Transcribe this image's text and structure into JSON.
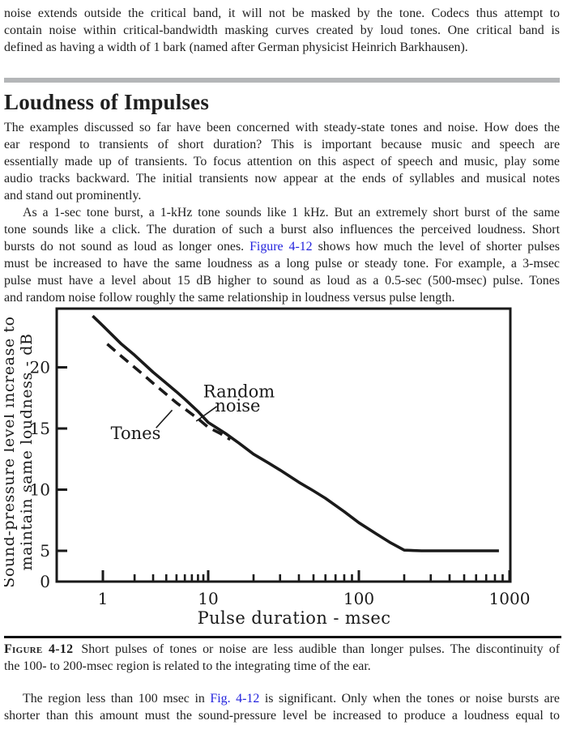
{
  "colors": {
    "ink": "#1f1f1f",
    "link": "#2222dd",
    "divider": "#b4b6b8",
    "chart_line": "#1a1a1a"
  },
  "intro": {
    "lines": [
      [
        {
          "t": "noise extends outside the critical band, it will not be masked by the tone. Codecs thus attempt to"
        }
      ],
      [
        {
          "t": "contain noise within critical-bandwidth masking curves created by loud tones. One critical band is"
        }
      ],
      [
        {
          "t": "defined as having a width of 1 bark (named after German physicist Heinrich Barkhausen)."
        }
      ]
    ]
  },
  "heading": "Loudness of Impulses",
  "paragraph1": {
    "lines": [
      [
        {
          "t": "The examples discussed so far have been concerned with steady-state tones and noise. How does the"
        }
      ],
      [
        {
          "t": "ear respond to transients of short duration? This is important because music and speech are"
        }
      ],
      [
        {
          "t": "essentially made up of transients. To focus attention on this aspect of speech and music, play some"
        }
      ],
      [
        {
          "t": "audio tracks backward. The initial transients now appear at the ends of syllables and musical notes"
        }
      ],
      [
        {
          "t": "and stand out prominently."
        }
      ]
    ]
  },
  "paragraph2": {
    "lines": [
      [
        {
          "t": "As a 1-sec tone burst, a 1-kHz tone sounds like 1 kHz. But an extremely short burst of the same"
        }
      ],
      [
        {
          "t": "tone sounds like a click. The duration of such a burst also influences the perceived loudness. Short"
        }
      ],
      [
        {
          "t": "bursts do not sound as loud as longer ones. "
        },
        {
          "t": "Figure 4-12",
          "kind": "link"
        },
        {
          "t": " shows how much the level of shorter pulses"
        }
      ],
      [
        {
          "t": "must be increased to have the same loudness as a long pulse or steady tone. For example, a 3-msec"
        }
      ],
      [
        {
          "t": "pulse must have a level about 15 dB higher to sound as loud as a 0.5-sec (500-msec) pulse. Tones"
        }
      ],
      [
        {
          "t": "and random noise follow roughly the same relationship in loudness versus pulse length."
        }
      ]
    ]
  },
  "caption": {
    "lines": [
      [
        {
          "t": "Figure 4-12",
          "kind": "figlabel"
        },
        {
          "t": "Short pulses of tones or noise are less audible than longer pulses. The discontinuity of"
        }
      ],
      [
        {
          "t": "the 100- to 200-msec region is related to the integrating time of the ear."
        }
      ]
    ]
  },
  "outro": {
    "lines": [
      [
        {
          "t": "The region less than 100 msec in "
        },
        {
          "t": "Fig. 4-12",
          "kind": "link"
        },
        {
          "t": " is significant. Only when the tones or noise bursts are"
        }
      ],
      [
        {
          "t": "shorter than this amount must the sound-pressure level be increased to produce a loudness equal to"
        }
      ]
    ]
  },
  "chart_data": {
    "type": "line",
    "title": "",
    "xlabel": "Pulse duration - msec",
    "ylabel_line1": "Sound-pressure level increase to",
    "ylabel_line2": "maintain same loudness - dB",
    "x_scale": "log",
    "xlim": [
      0.55,
      1050
    ],
    "ylim": [
      0,
      24.8
    ],
    "x_ticks_major": [
      1,
      10,
      100,
      1000
    ],
    "y_ticks": [
      0,
      5,
      10,
      15,
      20
    ],
    "grid": false,
    "legend_position": "inline-annotations",
    "series": [
      {
        "name": "Random noise",
        "style": "solid",
        "points": [
          [
            0.8,
            24.2
          ],
          [
            1,
            23.4
          ],
          [
            1.5,
            21.9
          ],
          [
            2,
            21.0
          ],
          [
            3,
            19.6
          ],
          [
            4,
            18.7
          ],
          [
            5,
            18.0
          ],
          [
            6,
            17.4
          ],
          [
            8,
            16.4
          ],
          [
            10,
            15.5
          ],
          [
            13,
            14.6
          ],
          [
            16,
            13.8
          ],
          [
            20,
            12.9
          ],
          [
            25,
            12.2
          ],
          [
            30,
            11.6
          ],
          [
            40,
            10.6
          ],
          [
            50,
            9.9
          ],
          [
            60,
            9.3
          ],
          [
            80,
            8.2
          ],
          [
            100,
            7.3
          ],
          [
            130,
            6.4
          ],
          [
            160,
            5.7
          ],
          [
            200,
            5.05
          ],
          [
            260,
            5.0
          ],
          [
            400,
            5.0
          ],
          [
            600,
            5.0
          ],
          [
            850,
            5.0
          ]
        ]
      },
      {
        "name": "Tones",
        "style": "dashed",
        "points": [
          [
            1.1,
            21.9
          ],
          [
            1.5,
            20.9
          ],
          [
            2,
            20.0
          ],
          [
            2.5,
            19.3
          ],
          [
            3,
            18.7
          ],
          [
            4,
            17.8
          ],
          [
            5,
            17.1
          ],
          [
            6,
            16.6
          ],
          [
            8,
            15.8
          ],
          [
            10,
            15.1
          ],
          [
            12,
            14.6
          ],
          [
            14,
            14.1
          ]
        ]
      }
    ],
    "annotations": [
      {
        "text": "Tones",
        "x": 2.05,
        "y": 14.6,
        "leader": {
          "x1": 3.2,
          "y1": 15.05,
          "x2": 4.55,
          "y2": 16.5
        }
      },
      {
        "text": "Random",
        "x": 16.0,
        "y": 18.0
      },
      {
        "text": "noise",
        "x": 15.7,
        "y": 16.85,
        "leader": {
          "x1": 11.4,
          "y1": 16.8,
          "x2": 7.7,
          "y2": 15.6
        }
      }
    ]
  }
}
